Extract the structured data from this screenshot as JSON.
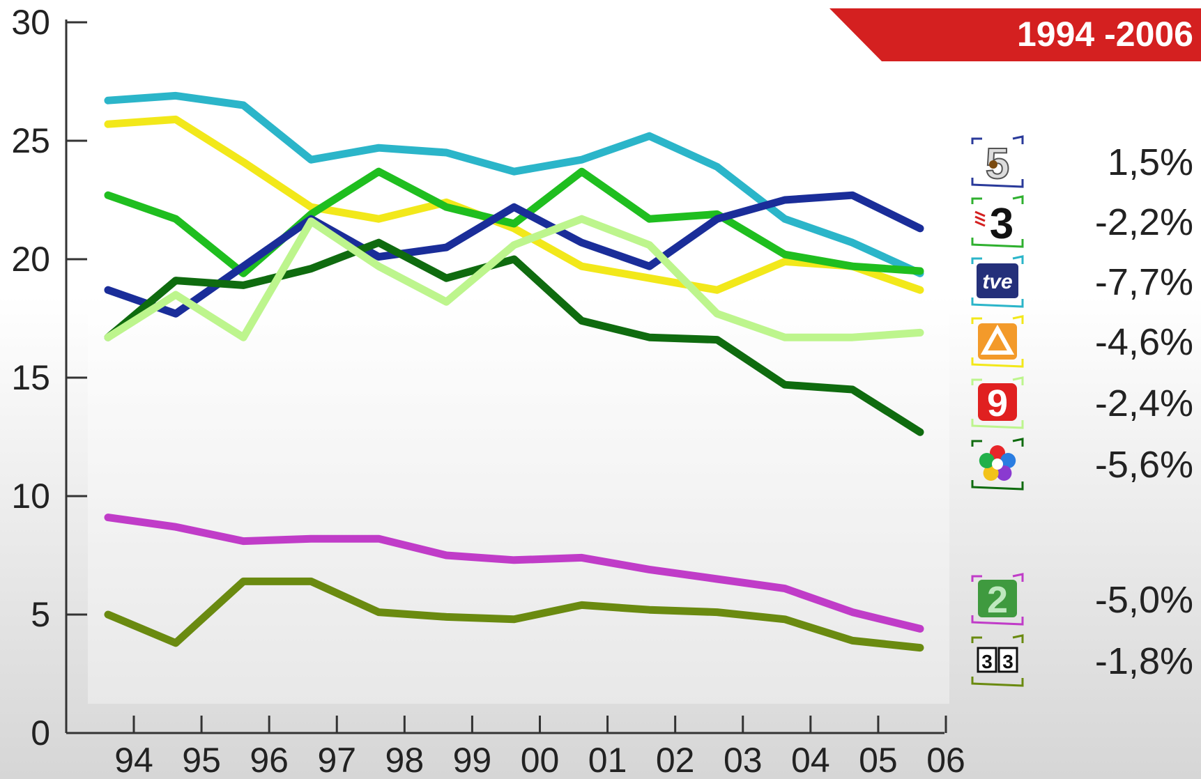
{
  "period_label": "1994 -2006",
  "colors": {
    "banner": "#d42020",
    "axis": "#333333",
    "text": "#222222"
  },
  "chart_data": {
    "type": "line",
    "x": [
      "94",
      "95",
      "96",
      "97",
      "98",
      "99",
      "00",
      "01",
      "02",
      "03",
      "04",
      "05",
      "06"
    ],
    "ylim": [
      0,
      30
    ],
    "yticks": [
      "0",
      "5",
      "10",
      "15",
      "20",
      "25",
      "30"
    ],
    "grid": false,
    "legend_position": "right",
    "series": [
      {
        "color": "#2bb5c9",
        "logo": "telecinco-5-icon",
        "values": [
          26.7,
          26.9,
          26.5,
          24.2,
          24.7,
          24.5,
          23.7,
          24.2,
          25.2,
          23.9,
          21.7,
          20.7,
          19.4
        ]
      },
      {
        "color": "#f2e81a",
        "logo": "antena3-icon",
        "values": [
          25.7,
          25.9,
          24.1,
          22.2,
          21.7,
          22.4,
          21.3,
          19.7,
          19.2,
          18.7,
          19.9,
          19.7,
          18.7
        ]
      },
      {
        "color": "#1fbe1f",
        "logo": "tv3-icon",
        "values": [
          22.7,
          21.7,
          19.4,
          21.9,
          23.7,
          22.2,
          21.5,
          23.7,
          21.7,
          21.9,
          20.2,
          19.7,
          19.5
        ]
      },
      {
        "color": "#1a2d99",
        "logo": "tve-icon",
        "values": [
          18.7,
          17.7,
          19.7,
          21.7,
          20.1,
          20.5,
          22.2,
          20.7,
          19.7,
          21.7,
          22.5,
          22.7,
          21.3
        ]
      },
      {
        "color": "#0f6b0f",
        "logo": "telemadrid-icon",
        "values": [
          16.7,
          19.1,
          18.9,
          19.6,
          20.7,
          19.2,
          20.0,
          17.4,
          16.7,
          16.6,
          14.7,
          14.5,
          12.7
        ]
      },
      {
        "color": "#bdf58d",
        "logo": "canal9-icon",
        "values": [
          16.7,
          18.5,
          16.7,
          21.6,
          19.7,
          18.2,
          20.6,
          21.7,
          20.6,
          17.7,
          16.7,
          16.7,
          16.9
        ]
      },
      {
        "color": "#c03cc8",
        "logo": "la2-icon",
        "values": [
          9.1,
          8.7,
          8.1,
          8.2,
          8.2,
          7.5,
          7.3,
          7.4,
          6.9,
          6.5,
          6.1,
          5.1,
          4.4
        ]
      },
      {
        "color": "#6a8a10",
        "logo": "canal33-icon",
        "values": [
          5.0,
          3.8,
          6.4,
          6.4,
          5.1,
          4.9,
          4.8,
          5.4,
          5.2,
          5.1,
          4.8,
          3.9,
          3.6
        ]
      }
    ],
    "legend": [
      {
        "logo": "telecinco-5-icon",
        "value": "1,5%"
      },
      {
        "logo": "tv3-icon",
        "value": "-2,2%"
      },
      {
        "logo": "tve-icon",
        "value": "-7,7%"
      },
      {
        "logo": "antena3-icon",
        "value": "-4,6%"
      },
      {
        "logo": "canal9-icon",
        "value": "-2,4%"
      },
      {
        "logo": "telemadrid-icon",
        "value": "-5,6%"
      },
      {
        "logo": "la2-icon",
        "value": "-5,0%"
      },
      {
        "logo": "canal33-icon",
        "value": "-1,8%"
      }
    ]
  }
}
